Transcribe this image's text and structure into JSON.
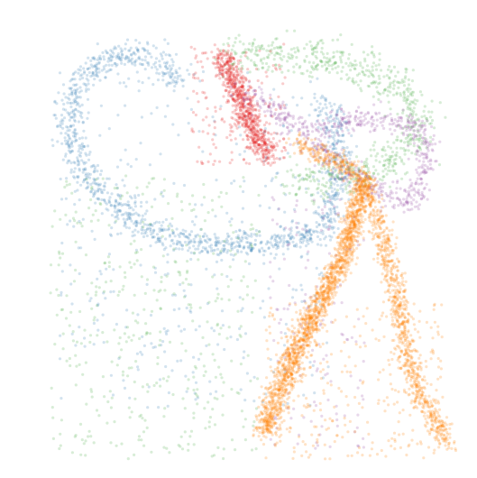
{
  "chart_data": {
    "type": "scatter",
    "title": "",
    "xlabel": "",
    "ylabel": "",
    "axes_visible": false,
    "grid": false,
    "legend": "none",
    "xlim": [
      -2.2,
      2.2
    ],
    "ylim": [
      -2.2,
      2.2
    ],
    "point_opacity": 0.22,
    "point_radius_data": 0.0125,
    "series": [
      {
        "color": "#377eb8",
        "points_per_unit": 22,
        "spread": 0.07,
        "path": [
          [
            -0.55,
            1.5
          ],
          [
            -0.85,
            1.75
          ],
          [
            -1.2,
            1.75
          ],
          [
            -1.55,
            1.45
          ],
          [
            -1.6,
            1.0
          ],
          [
            -1.45,
            0.6
          ],
          [
            -1.1,
            0.25
          ],
          [
            -0.7,
            0.0
          ],
          [
            -0.3,
            -0.05
          ],
          [
            0.2,
            -0.05
          ],
          [
            0.6,
            0.0
          ],
          [
            0.85,
            0.15
          ],
          [
            0.95,
            0.55
          ],
          [
            0.95,
            1.0
          ],
          [
            0.8,
            1.3
          ]
        ],
        "cloud": {
          "xrange": [
            -1.7,
            0.9
          ],
          "yrange": [
            -1.6,
            1.6
          ],
          "count": 380
        }
      },
      {
        "color": "#4daf4a",
        "points_per_unit": 20,
        "spread": 0.09,
        "path": [
          [
            -0.1,
            1.75
          ],
          [
            0.4,
            1.75
          ],
          [
            1.0,
            1.68
          ],
          [
            1.55,
            1.45
          ],
          [
            1.75,
            1.1
          ],
          [
            1.5,
            0.75
          ],
          [
            1.0,
            0.55
          ],
          [
            0.5,
            0.55
          ]
        ],
        "cloud": {
          "xrange": [
            -1.8,
            0.2
          ],
          "yrange": [
            -2.1,
            0.6
          ],
          "count": 420
        }
      },
      {
        "color": "#e41a1c",
        "points_per_unit": 70,
        "spread": 0.06,
        "path": [
          [
            -0.15,
            1.72
          ],
          [
            -0.05,
            1.5
          ],
          [
            0.05,
            1.25
          ],
          [
            0.15,
            1.0
          ],
          [
            0.3,
            0.8
          ]
        ],
        "cloud": {
          "xrange": [
            -0.45,
            0.45
          ],
          "yrange": [
            0.7,
            1.85
          ],
          "count": 150
        }
      },
      {
        "color": "#984ea3",
        "points_per_unit": 18,
        "spread": 0.06,
        "path": [
          [
            0.05,
            1.4
          ],
          [
            0.45,
            1.15
          ],
          [
            0.85,
            0.8
          ],
          [
            1.3,
            0.45
          ],
          [
            1.65,
            0.35
          ],
          [
            1.8,
            0.75
          ],
          [
            1.75,
            1.05
          ],
          [
            1.2,
            1.15
          ],
          [
            0.7,
            1.05
          ]
        ],
        "cloud": {
          "xrange": [
            0.3,
            1.2
          ],
          "yrange": [
            -2.0,
            0.4
          ],
          "count": 160
        }
      },
      {
        "color": "#ff7f00",
        "points_per_unit": 34,
        "spread": 0.05,
        "path": [
          [
            0.55,
            0.9
          ],
          [
            0.95,
            0.72
          ],
          [
            1.2,
            0.55
          ],
          [
            1.35,
            0.1
          ],
          [
            1.45,
            -0.3
          ],
          [
            1.55,
            -0.7
          ],
          [
            1.6,
            -1.1
          ],
          [
            1.7,
            -1.45
          ],
          [
            1.85,
            -1.65
          ],
          [
            2.0,
            -1.95
          ]
        ],
        "path2": [
          [
            1.2,
            0.55
          ],
          [
            1.05,
            0.0
          ],
          [
            0.85,
            -0.5
          ],
          [
            0.55,
            -1.0
          ],
          [
            0.3,
            -1.55
          ],
          [
            0.25,
            -1.85
          ],
          [
            0.45,
            -1.4
          ],
          [
            0.7,
            -0.75
          ],
          [
            1.0,
            -0.15
          ],
          [
            1.2,
            0.55
          ]
        ],
        "cloud": {
          "xrange": [
            0.25,
            1.95
          ],
          "yrange": [
            -2.1,
            -0.6
          ],
          "count": 300
        }
      }
    ]
  }
}
